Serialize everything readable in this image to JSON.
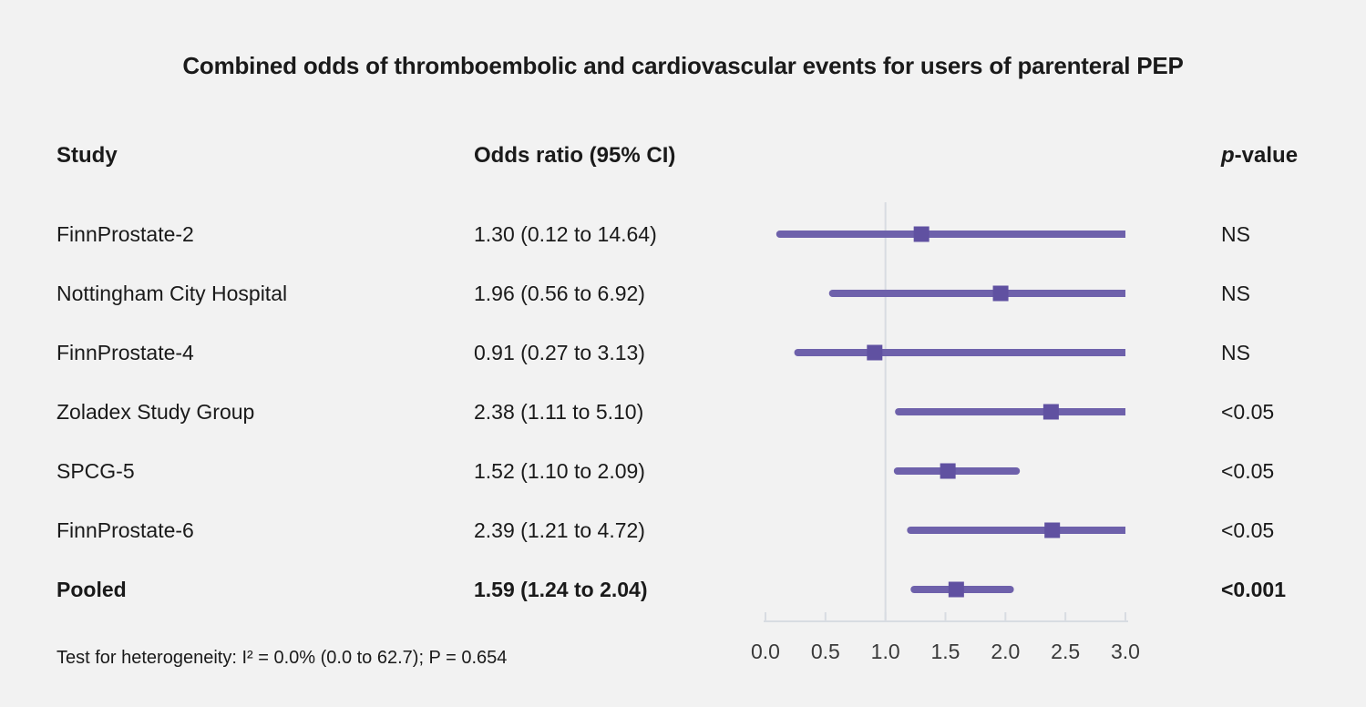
{
  "title": "Combined odds of thromboembolic and cardiovascular events for users of parenteral PEP",
  "columns": {
    "study": "Study",
    "or_ci": "Odds ratio (95% CI)",
    "p_italic": "p",
    "p_rest": "-value"
  },
  "footer": "Test for heterogeneity: I² = 0.0% (0.0 to 62.7); P = 0.654",
  "colors": {
    "background": "#f2f2f2",
    "ci_line": "#6e61ab",
    "or_marker": "#6051a1",
    "axis": "#d8dce2",
    "text": "#1a1a1a",
    "tick_label": "#3a3a3a"
  },
  "chart_data": {
    "type": "forest",
    "title": "Combined odds of thromboembolic and cardiovascular events for users of parenteral PEP",
    "xlim": [
      0.0,
      3.0
    ],
    "x_ticks": [
      0.0,
      0.5,
      1.0,
      1.5,
      2.0,
      2.5,
      3.0
    ],
    "x_tick_labels": [
      "0.0",
      "0.5",
      "1.0",
      "1.5",
      "2.0",
      "2.5",
      "3.0"
    ],
    "reference_line": 1.0,
    "clip_max": 3.0,
    "grid": false,
    "studies": [
      {
        "study": "FinnProstate-2",
        "or": 1.3,
        "ci_low": 0.12,
        "ci_high": 14.64,
        "or_ci_label": "1.30 (0.12 to 14.64)",
        "p_value": "NS",
        "bold": false
      },
      {
        "study": "Nottingham City Hospital",
        "or": 1.96,
        "ci_low": 0.56,
        "ci_high": 6.92,
        "or_ci_label": "1.96 (0.56 to 6.92)",
        "p_value": "NS",
        "bold": false
      },
      {
        "study": "FinnProstate-4",
        "or": 0.91,
        "ci_low": 0.27,
        "ci_high": 3.13,
        "or_ci_label": "0.91 (0.27 to 3.13)",
        "p_value": "NS",
        "bold": false
      },
      {
        "study": "Zoladex Study Group",
        "or": 2.38,
        "ci_low": 1.11,
        "ci_high": 5.1,
        "or_ci_label": "2.38 (1.11 to 5.10)",
        "p_value": "<0.05",
        "bold": false
      },
      {
        "study": "SPCG-5",
        "or": 1.52,
        "ci_low": 1.1,
        "ci_high": 2.09,
        "or_ci_label": "1.52 (1.10 to 2.09)",
        "p_value": "<0.05",
        "bold": false
      },
      {
        "study": "FinnProstate-6",
        "or": 2.39,
        "ci_low": 1.21,
        "ci_high": 4.72,
        "or_ci_label": "2.39 (1.21 to 4.72)",
        "p_value": "<0.05",
        "bold": false
      },
      {
        "study": "Pooled",
        "or": 1.59,
        "ci_low": 1.24,
        "ci_high": 2.04,
        "or_ci_label": "1.59 (1.24 to 2.04)",
        "p_value": "<0.001",
        "bold": true
      }
    ]
  }
}
